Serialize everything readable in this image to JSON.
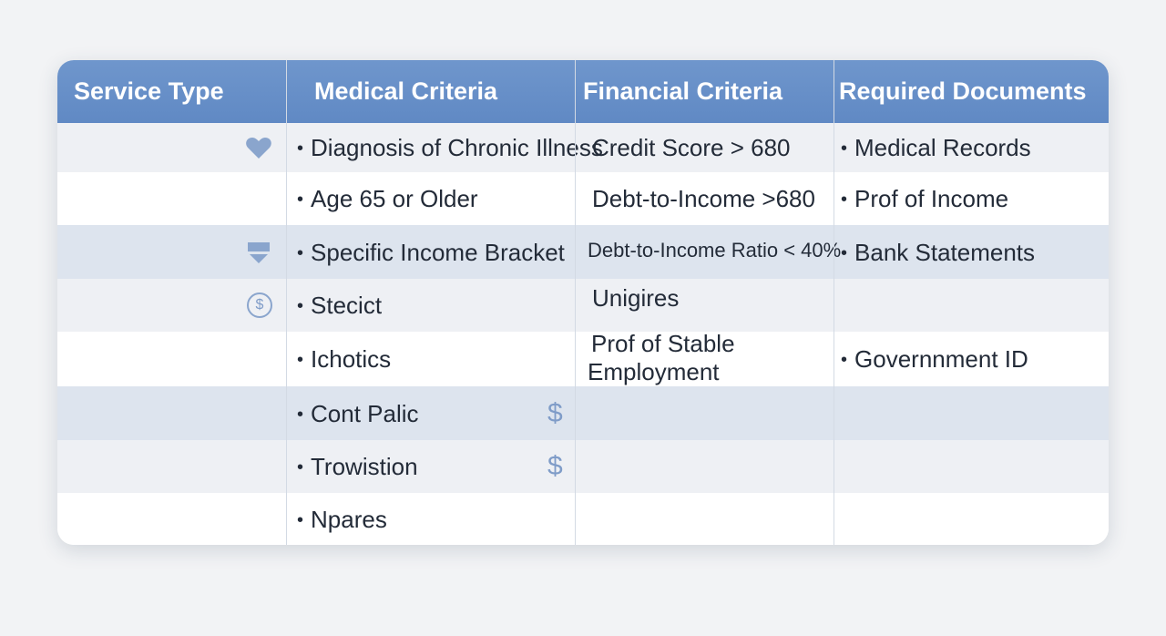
{
  "header": {
    "columns": [
      "Service Type",
      "Medical Criteria",
      "Financial Criteria",
      "Required Documents"
    ]
  },
  "table": {
    "rows": [
      {
        "medical": "Diagnosis of Chronic Illness",
        "financial": "Credit Score > 680",
        "documents": "Medical Records"
      },
      {
        "medical": "Age 65 or Older",
        "financial": "Debt-to-Income >680",
        "documents": "Prof of Income"
      },
      {
        "medical": "Specific Income Bracket",
        "financial": "Debt-to-Income Ratio < 40%",
        "documents": "Bank Statements"
      },
      {
        "service_symbol": "$",
        "medical": "Stecict",
        "financial": "Unigires"
      },
      {
        "medical": "Ichotics",
        "financial": [
          "Prof of Stable",
          "Employment"
        ],
        "documents": "Governnment ID"
      },
      {
        "medical": "Cont Palic",
        "price_symbol": "$"
      },
      {
        "medical": "Trowistion",
        "price_symbol": "$"
      },
      {
        "medical": "Npares"
      }
    ]
  }
}
